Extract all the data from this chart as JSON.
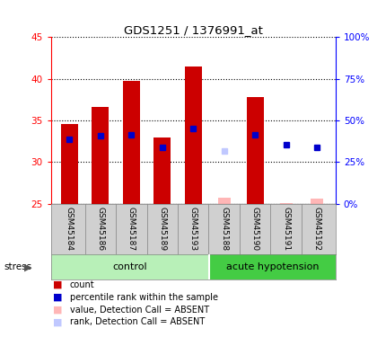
{
  "title": "GDS1251 / 1376991_at",
  "samples": [
    "GSM45184",
    "GSM45186",
    "GSM45187",
    "GSM45189",
    "GSM45193",
    "GSM45188",
    "GSM45190",
    "GSM45191",
    "GSM45192"
  ],
  "bar_bottom": 25,
  "bar_tops": [
    34.6,
    36.6,
    39.7,
    33.0,
    41.5,
    null,
    37.8,
    null,
    null
  ],
  "absent_value": [
    null,
    null,
    null,
    null,
    null,
    25.7,
    null,
    25.1,
    25.6
  ],
  "blue_squares": [
    32.7,
    33.2,
    33.3,
    31.8,
    34.0,
    null,
    33.3,
    32.1,
    31.8
  ],
  "absent_rank": [
    null,
    null,
    null,
    null,
    null,
    31.3,
    null,
    null,
    null
  ],
  "ylim": [
    25,
    45
  ],
  "yticks_left": [
    25,
    30,
    35,
    40,
    45
  ],
  "yticks_right_vals": [
    0,
    25,
    50,
    75,
    100
  ],
  "bar_color": "#cc0000",
  "blue_color": "#0000cc",
  "absent_value_color": "#ffb6b6",
  "absent_rank_color": "#c0c8ff",
  "control_count": 5,
  "acute_count": 4,
  "control_color": "#b8f0b8",
  "acute_color": "#44cc44",
  "label_bg_color": "#d0d0d0"
}
